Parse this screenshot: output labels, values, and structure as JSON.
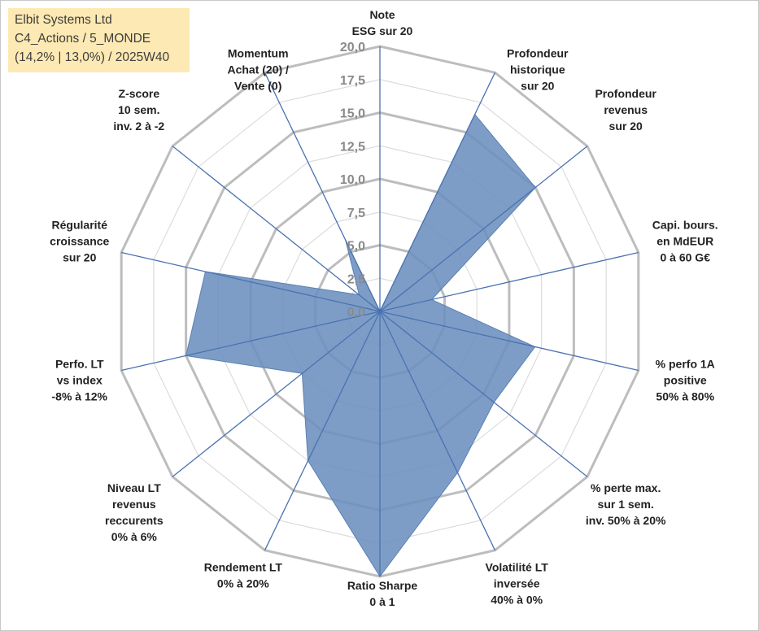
{
  "info": {
    "company": "Elbit Systems Ltd",
    "portfolio": "C4_Actions / 5_MONDE",
    "stats": "(14,2% | 13,0%) / 2025W40"
  },
  "chart_data": {
    "type": "radar",
    "title": "",
    "rmin": 0,
    "rmax": 20,
    "ticks": [
      "0,0",
      "2,5",
      "5,0",
      "7,5",
      "10,0",
      "12,5",
      "15,0",
      "17,5",
      "20,0"
    ],
    "axes": [
      {
        "name": "note-esg",
        "lines": [
          "Note",
          "ESG sur 20"
        ]
      },
      {
        "name": "profondeur-historique",
        "lines": [
          "Profondeur",
          "historique",
          "sur 20"
        ]
      },
      {
        "name": "profondeur-revenus",
        "lines": [
          "Profondeur",
          "revenus",
          "sur 20"
        ]
      },
      {
        "name": "capi-bours",
        "lines": [
          "Capi. bours.",
          "en MdEUR",
          "0 à 60 G€"
        ]
      },
      {
        "name": "perfo-1a-positive",
        "lines": [
          "% perfo 1A",
          "positive",
          "50% à 80%"
        ]
      },
      {
        "name": "perte-max",
        "lines": [
          "% perte max.",
          "sur 1 sem.",
          "inv. 50% à 20%"
        ]
      },
      {
        "name": "volatilite-lt",
        "lines": [
          "Volatilité LT",
          "inversée",
          "40% à 0%"
        ]
      },
      {
        "name": "ratio-sharpe",
        "lines": [
          "Ratio Sharpe",
          "0 à 1"
        ]
      },
      {
        "name": "rendement-lt",
        "lines": [
          "Rendement LT",
          "0% à 20%"
        ]
      },
      {
        "name": "niveau-lt-revenus",
        "lines": [
          "Niveau LT",
          "revenus",
          "reccurents",
          "0% à 6%"
        ]
      },
      {
        "name": "perfo-lt-vs-index",
        "lines": [
          "Perfo. LT",
          "vs index",
          "-8% à 12%"
        ]
      },
      {
        "name": "regularite-croissance",
        "lines": [
          "Régularité",
          "croissance",
          "sur 20"
        ]
      },
      {
        "name": "z-score",
        "lines": [
          "Z-score",
          "10 sem.",
          "inv. 2 à -2"
        ]
      },
      {
        "name": "momentum",
        "lines": [
          "Momentum",
          "Achat (20) /",
          "Vente (0)"
        ]
      }
    ],
    "series": [
      {
        "name": "Elbit Systems Ltd",
        "color": "#6b8fbf",
        "values": [
          0,
          16.5,
          15.0,
          4.0,
          12.0,
          11.0,
          13.5,
          20.0,
          12.5,
          7.5,
          15.0,
          13.5,
          2.0,
          6.0
        ]
      }
    ]
  }
}
